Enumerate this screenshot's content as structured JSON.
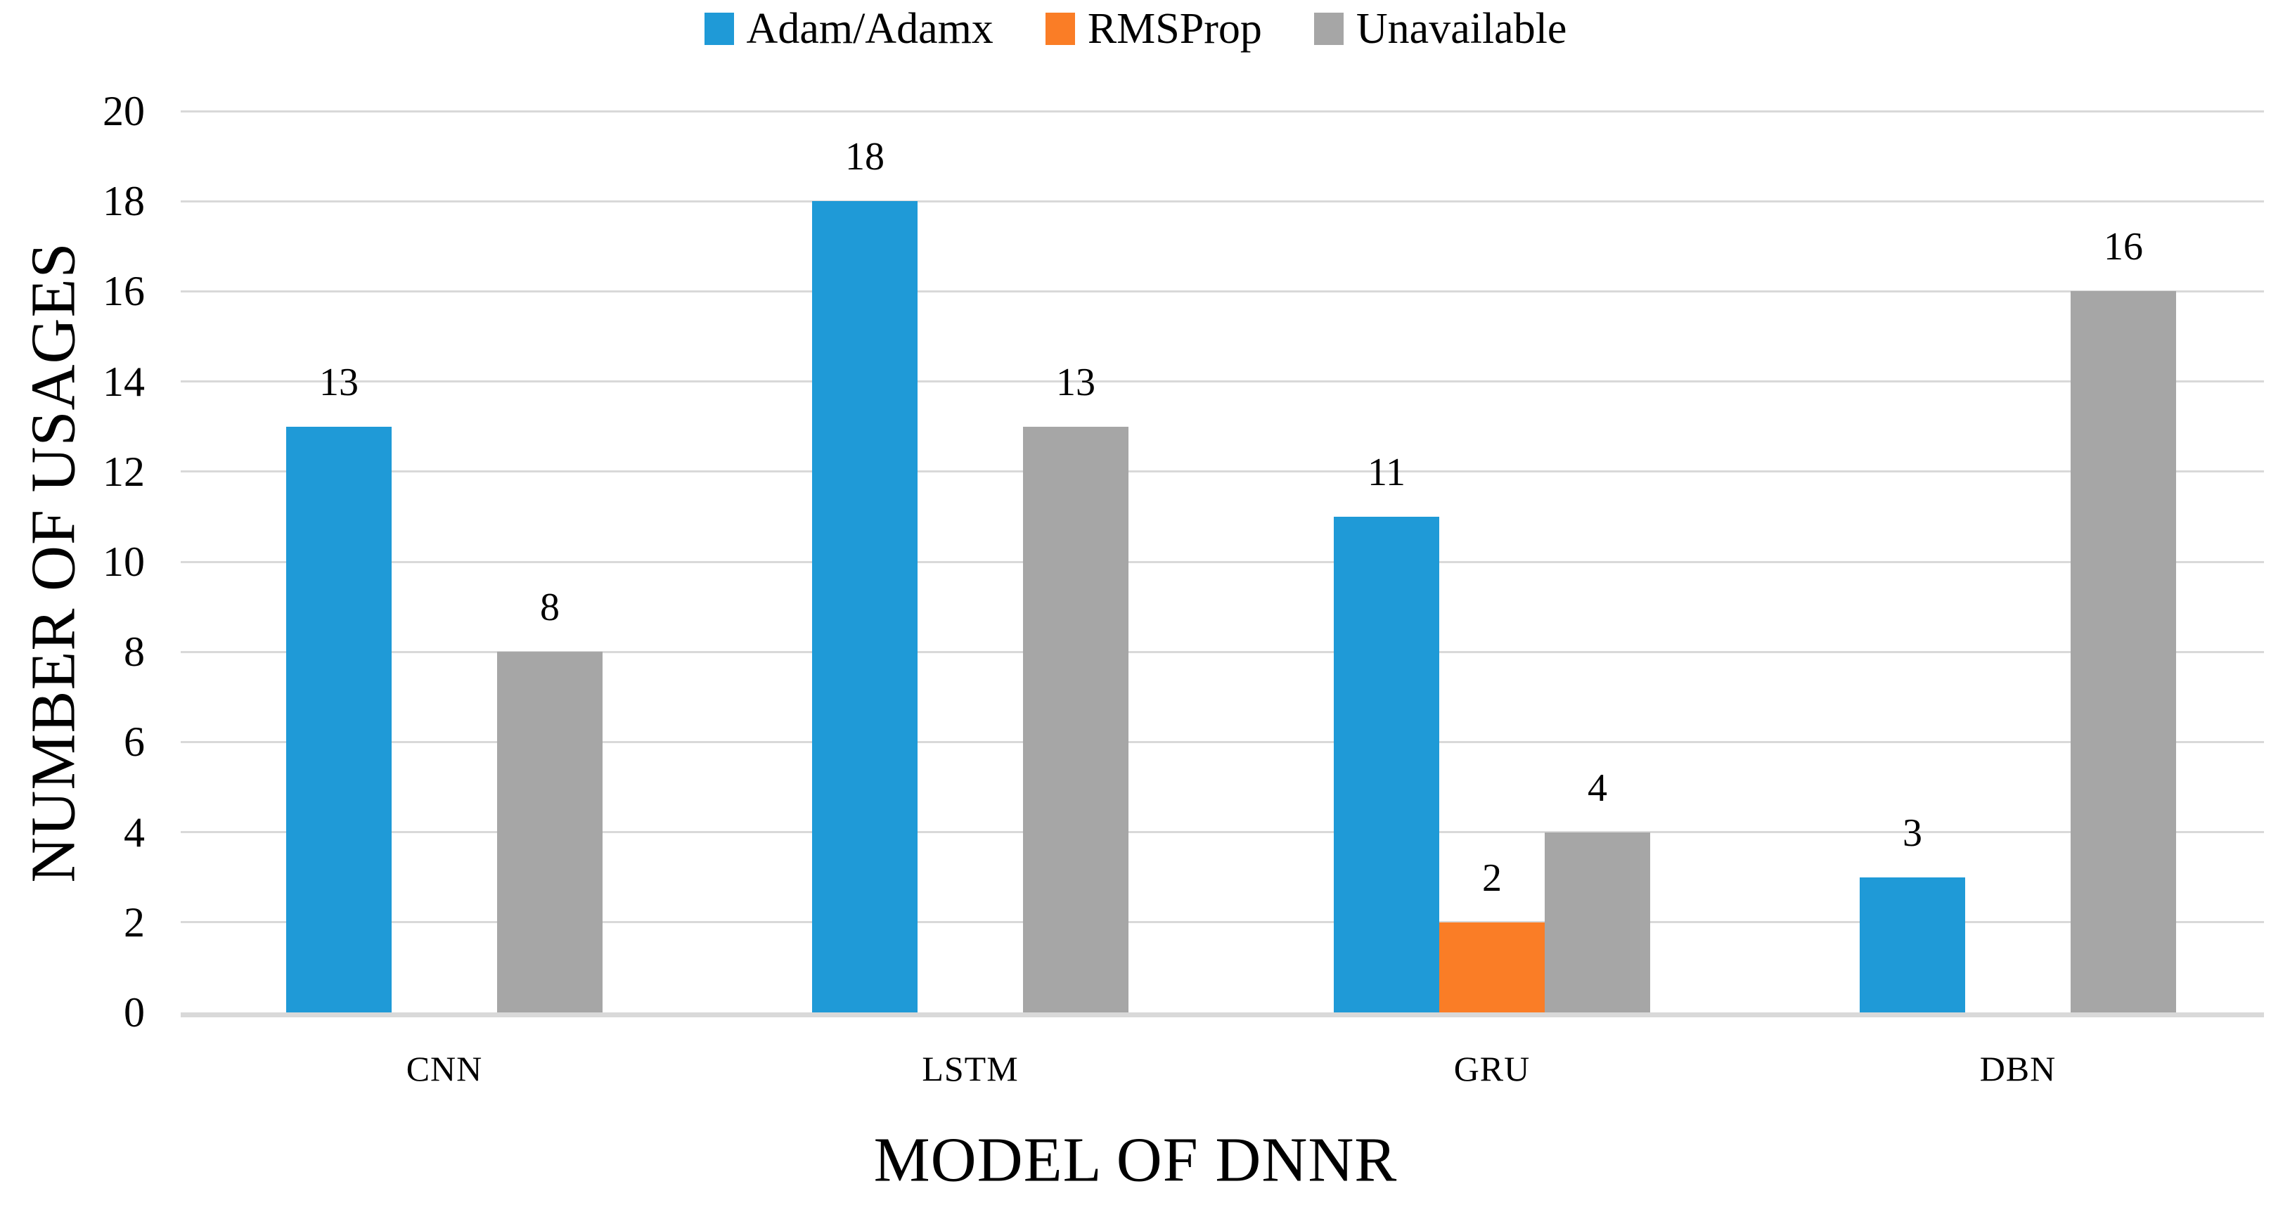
{
  "chart_data": {
    "type": "bar",
    "title": "",
    "categories": [
      "CNN",
      "LSTM",
      "GRU",
      "DBN"
    ],
    "series": [
      {
        "name": "Adam/Adamx",
        "color": "#1F9AD7",
        "values": [
          13,
          18,
          11,
          3
        ]
      },
      {
        "name": "RMSProp",
        "color": "#FA7D26",
        "values": [
          null,
          null,
          2,
          null
        ]
      },
      {
        "name": "Unavailable",
        "color": "#A6A6A6",
        "values": [
          8,
          13,
          4,
          16
        ]
      }
    ],
    "xlabel": "MODEL OF DNNR",
    "ylabel": "NUMBER OF USAGES",
    "ylim": [
      0,
      20
    ],
    "ytick_step": 2,
    "yticks": [
      0,
      2,
      4,
      6,
      8,
      10,
      12,
      14,
      16,
      18,
      20
    ],
    "grid": true,
    "legend_position": "top",
    "bar_value_labels": true
  },
  "colors": {
    "gridline": "#D9D9D9",
    "axis_line": "#D9D9D9",
    "text": "#000000",
    "background": "#FFFFFF"
  }
}
